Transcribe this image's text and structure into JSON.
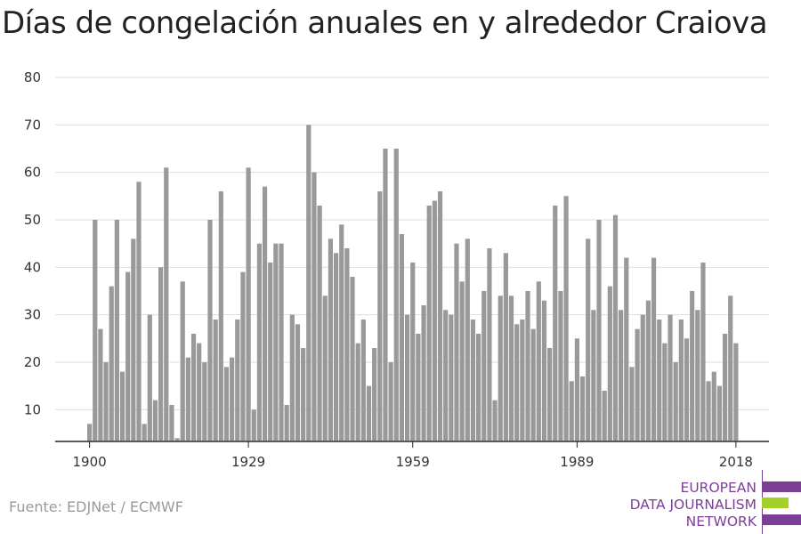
{
  "title": "Días de congelación anuales en y alrededor Craiova",
  "source": "Fuente: EDJNet / ECMWF",
  "logo": {
    "lines": [
      "EUROPEAN",
      "DATA JOURNALISM",
      "NETWORK"
    ],
    "colors": [
      "#7b3f98",
      "#a3d12a",
      "#7b3f98"
    ]
  },
  "chart_data": {
    "type": "bar",
    "x": [
      1900,
      1901,
      1902,
      1903,
      1904,
      1905,
      1906,
      1907,
      1908,
      1909,
      1910,
      1911,
      1912,
      1913,
      1914,
      1915,
      1916,
      1917,
      1918,
      1919,
      1920,
      1921,
      1922,
      1923,
      1924,
      1925,
      1926,
      1927,
      1928,
      1929,
      1930,
      1931,
      1932,
      1933,
      1934,
      1935,
      1936,
      1937,
      1938,
      1939,
      1940,
      1941,
      1942,
      1943,
      1944,
      1945,
      1946,
      1947,
      1948,
      1949,
      1950,
      1951,
      1952,
      1953,
      1954,
      1955,
      1956,
      1957,
      1958,
      1959,
      1960,
      1961,
      1962,
      1963,
      1964,
      1965,
      1966,
      1967,
      1968,
      1969,
      1970,
      1971,
      1972,
      1973,
      1974,
      1975,
      1976,
      1977,
      1978,
      1979,
      1980,
      1981,
      1982,
      1983,
      1984,
      1985,
      1986,
      1987,
      1988,
      1989,
      1990,
      1991,
      1992,
      1993,
      1994,
      1995,
      1996,
      1997,
      1998,
      1999,
      2000,
      2001,
      2002,
      2003,
      2004,
      2005,
      2006,
      2007,
      2008,
      2009,
      2010,
      2011,
      2012,
      2013,
      2014,
      2015,
      2016,
      2017,
      2018
    ],
    "values": [
      7,
      50,
      27,
      20,
      36,
      50,
      18,
      39,
      46,
      58,
      7,
      30,
      12,
      40,
      61,
      11,
      4,
      37,
      21,
      26,
      24,
      20,
      50,
      29,
      56,
      19,
      21,
      29,
      39,
      61,
      10,
      45,
      57,
      41,
      45,
      45,
      11,
      30,
      28,
      23,
      70,
      60,
      53,
      34,
      46,
      43,
      49,
      44,
      38,
      24,
      29,
      15,
      23,
      56,
      65,
      20,
      65,
      47,
      30,
      41,
      26,
      32,
      53,
      54,
      56,
      31,
      30,
      45,
      37,
      46,
      29,
      26,
      35,
      44,
      12,
      34,
      43,
      34,
      28,
      29,
      35,
      27,
      37,
      33,
      23,
      53,
      35,
      55,
      16,
      25,
      17,
      46,
      31,
      50,
      14,
      36,
      51,
      31,
      42,
      19,
      27,
      30,
      33,
      42,
      29,
      24,
      30,
      20,
      29,
      25,
      35,
      31,
      41,
      16,
      18,
      15,
      26,
      34,
      24
    ],
    "xticks": [
      "1900",
      "1929",
      "1959",
      "1989",
      "2018"
    ],
    "yticks": [
      "10",
      "20",
      "30",
      "40",
      "50",
      "60",
      "70",
      "80"
    ],
    "ylim": [
      3.5,
      80
    ],
    "bar_color": "#999999",
    "grid": true
  }
}
